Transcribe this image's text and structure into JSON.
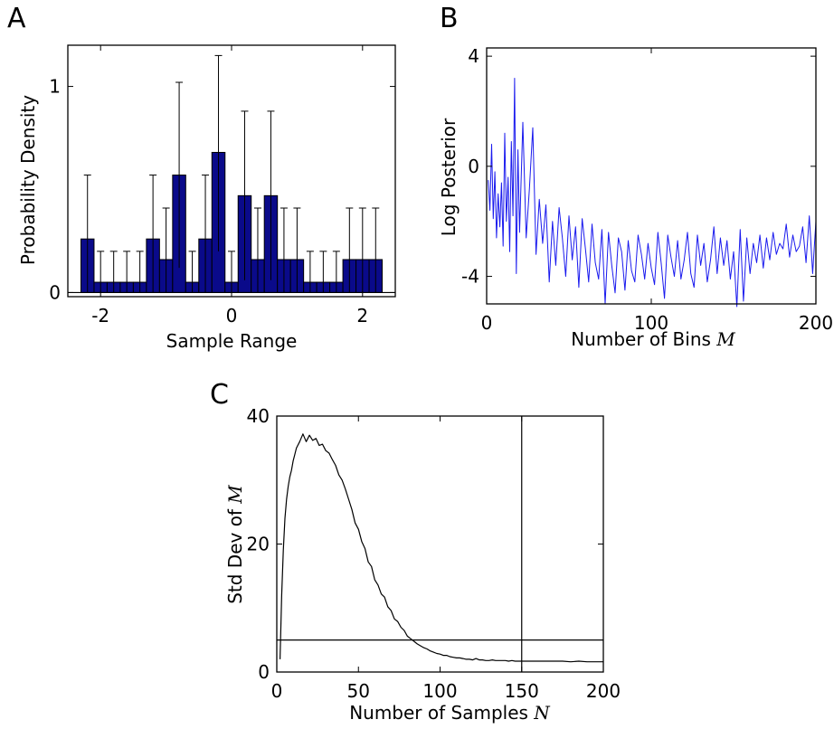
{
  "chart_data": [
    {
      "panel": "A",
      "type": "bar",
      "xlabel": "Sample Range",
      "ylabel": "Probability Density",
      "xlim": [
        -2.5,
        2.5
      ],
      "ylim": [
        -0.02,
        1.2
      ],
      "xticks": [
        -2,
        0,
        2
      ],
      "xtick_labels": [
        "-2",
        "0",
        "2"
      ],
      "yticks": [
        0,
        1
      ],
      "ytick_labels": [
        "0",
        "1"
      ],
      "bar_color": "#0a0a8a",
      "bin_edges": [
        -2.3,
        -2.1,
        -1.9,
        -1.7,
        -1.5,
        -1.3,
        -1.1,
        -0.9,
        -0.7,
        -0.5,
        -0.3,
        -0.1,
        0.1,
        0.3,
        0.5,
        0.7,
        0.9,
        1.1,
        1.3,
        1.5,
        1.7,
        1.9,
        2.1,
        2.3
      ],
      "values": [
        0.26,
        0.05,
        0.05,
        0.05,
        0.05,
        0.26,
        0.16,
        0.57,
        0.05,
        0.26,
        0.68,
        0.05,
        0.47,
        0.16,
        0.47,
        0.16,
        0.16,
        0.05,
        0.05,
        0.05,
        0.16,
        0.16,
        0.16
      ],
      "error_upper": [
        0.57,
        0.2,
        0.2,
        0.2,
        0.2,
        0.57,
        0.41,
        1.02,
        0.2,
        0.57,
        1.15,
        0.2,
        0.88,
        0.41,
        0.88,
        0.41,
        0.41,
        0.2,
        0.2,
        0.2,
        0.41,
        0.41,
        0.41
      ],
      "error_lower": [
        0.0,
        0.0,
        0.0,
        0.0,
        0.0,
        0.0,
        0.0,
        0.12,
        0.0,
        0.0,
        0.2,
        0.0,
        0.06,
        0.0,
        0.06,
        0.0,
        0.0,
        0.0,
        0.0,
        0.0,
        0.0,
        0.0,
        0.0
      ]
    },
    {
      "panel": "B",
      "type": "line",
      "xlabel": "Number of Bins",
      "xlabel_var": "M",
      "ylabel": "Log Posterior",
      "xlim": [
        0,
        200
      ],
      "ylim": [
        -5,
        4.3
      ],
      "xticks": [
        0,
        100,
        200
      ],
      "xtick_labels": [
        "0",
        "100",
        "200"
      ],
      "yticks": [
        4,
        0,
        -4
      ],
      "ytick_labels": [
        "4",
        "0",
        "-4"
      ],
      "line_color": "#1a1aee",
      "series": [
        {
          "x": [
            1,
            2,
            3,
            4,
            5,
            6,
            7,
            8,
            9,
            10,
            11,
            12,
            13,
            14,
            15,
            16,
            17,
            18,
            19,
            20,
            22,
            24,
            26,
            28,
            30,
            32,
            34,
            36,
            38,
            40,
            42,
            44,
            46,
            48,
            50,
            52,
            54,
            56,
            58,
            60,
            62,
            64,
            66,
            68,
            70,
            72,
            74,
            76,
            78,
            80,
            82,
            84,
            86,
            88,
            90,
            92,
            94,
            96,
            98,
            100,
            102,
            104,
            106,
            108,
            110,
            112,
            114,
            116,
            118,
            120,
            122,
            124,
            126,
            128,
            130,
            132,
            134,
            136,
            138,
            140,
            142,
            144,
            146,
            148,
            150,
            152,
            154,
            156,
            158,
            160,
            162,
            164,
            166,
            168,
            170,
            172,
            174,
            176,
            178,
            180,
            182,
            184,
            186,
            188,
            190,
            192,
            194,
            196,
            198,
            200
          ],
          "y": [
            -0.5,
            -1.6,
            0.8,
            -1.9,
            -0.2,
            -2.6,
            -1.0,
            -2.2,
            -0.6,
            -2.9,
            1.2,
            -2.0,
            -0.4,
            -3.1,
            0.9,
            -1.8,
            3.2,
            -3.9,
            0.6,
            -2.4,
            1.6,
            -2.6,
            -0.8,
            1.4,
            -3.2,
            -1.2,
            -2.8,
            -1.4,
            -4.2,
            -2.0,
            -3.6,
            -1.5,
            -2.6,
            -4.0,
            -1.8,
            -3.4,
            -2.2,
            -4.4,
            -1.9,
            -3.0,
            -4.2,
            -2.1,
            -3.5,
            -4.1,
            -2.3,
            -5.0,
            -2.4,
            -3.6,
            -4.6,
            -2.6,
            -3.1,
            -4.5,
            -2.7,
            -3.8,
            -4.2,
            -2.5,
            -3.2,
            -4.1,
            -2.8,
            -3.7,
            -4.3,
            -2.4,
            -3.5,
            -4.8,
            -2.5,
            -3.3,
            -4.0,
            -2.7,
            -4.1,
            -3.4,
            -2.4,
            -3.9,
            -4.4,
            -2.5,
            -3.6,
            -2.8,
            -4.2,
            -3.4,
            -2.2,
            -3.9,
            -2.6,
            -3.6,
            -2.7,
            -4.1,
            -3.1,
            -5.1,
            -2.3,
            -4.9,
            -2.6,
            -3.9,
            -2.8,
            -3.5,
            -2.5,
            -3.7,
            -2.6,
            -3.4,
            -2.4,
            -3.2,
            -2.8,
            -3.0,
            -2.1,
            -3.3,
            -2.5,
            -3.1,
            -2.9,
            -2.2,
            -3.5,
            -1.8,
            -3.9,
            -2.0
          ]
        }
      ]
    },
    {
      "panel": "C",
      "type": "line",
      "xlabel": "Number of Samples",
      "xlabel_var": "N",
      "ylabel": "Std Dev of",
      "ylabel_var": "M",
      "xlim": [
        0,
        200
      ],
      "ylim": [
        0,
        40
      ],
      "xticks": [
        0,
        50,
        100,
        150,
        200
      ],
      "xtick_labels": [
        "0",
        "50",
        "100",
        "150",
        "200"
      ],
      "yticks": [
        0,
        20,
        40
      ],
      "ytick_labels": [
        "0",
        "20",
        "40"
      ],
      "line_color": "#000000",
      "reference_lines": {
        "horizontal_y": 5,
        "vertical_x": 150
      },
      "series": [
        {
          "x": [
            2,
            3,
            4,
            5,
            6,
            7,
            8,
            9,
            10,
            11,
            12,
            14,
            16,
            18,
            20,
            22,
            24,
            26,
            28,
            30,
            32,
            34,
            36,
            38,
            40,
            42,
            44,
            46,
            48,
            50,
            52,
            54,
            56,
            58,
            60,
            62,
            64,
            66,
            68,
            70,
            72,
            74,
            76,
            78,
            80,
            82,
            84,
            86,
            88,
            90,
            92,
            94,
            96,
            98,
            100,
            102,
            104,
            106,
            108,
            110,
            112,
            114,
            116,
            118,
            120,
            122,
            124,
            126,
            128,
            130,
            132,
            134,
            136,
            138,
            140,
            142,
            144,
            146,
            148,
            150,
            152,
            154,
            156,
            158,
            160,
            165,
            170,
            175,
            180,
            185,
            190,
            195,
            200
          ],
          "y": [
            2,
            12,
            19,
            24,
            27,
            29,
            30.5,
            31.5,
            33,
            34,
            35,
            36,
            37.2,
            36.0,
            37.0,
            36.2,
            36.5,
            35.4,
            35.6,
            34.6,
            34.2,
            33.2,
            32.3,
            30.8,
            30.0,
            28.6,
            27.0,
            25.4,
            23.3,
            22.3,
            20.4,
            19.3,
            17.2,
            16.5,
            14.4,
            13.6,
            12.2,
            11.7,
            10.2,
            9.6,
            8.3,
            7.9,
            7.0,
            6.5,
            5.6,
            5.2,
            4.8,
            4.4,
            4.1,
            3.8,
            3.6,
            3.3,
            3.1,
            2.9,
            2.8,
            2.6,
            2.6,
            2.4,
            2.3,
            2.2,
            2.2,
            2.1,
            2.0,
            2.0,
            1.9,
            2.1,
            1.9,
            1.9,
            1.8,
            1.8,
            1.9,
            1.8,
            1.8,
            1.8,
            1.8,
            1.7,
            1.8,
            1.7,
            1.7,
            1.7,
            1.7,
            1.7,
            1.7,
            1.7,
            1.7,
            1.7,
            1.7,
            1.7,
            1.6,
            1.7,
            1.6,
            1.6,
            1.6
          ]
        }
      ]
    }
  ],
  "panel_labels": [
    "A",
    "B",
    "C"
  ]
}
